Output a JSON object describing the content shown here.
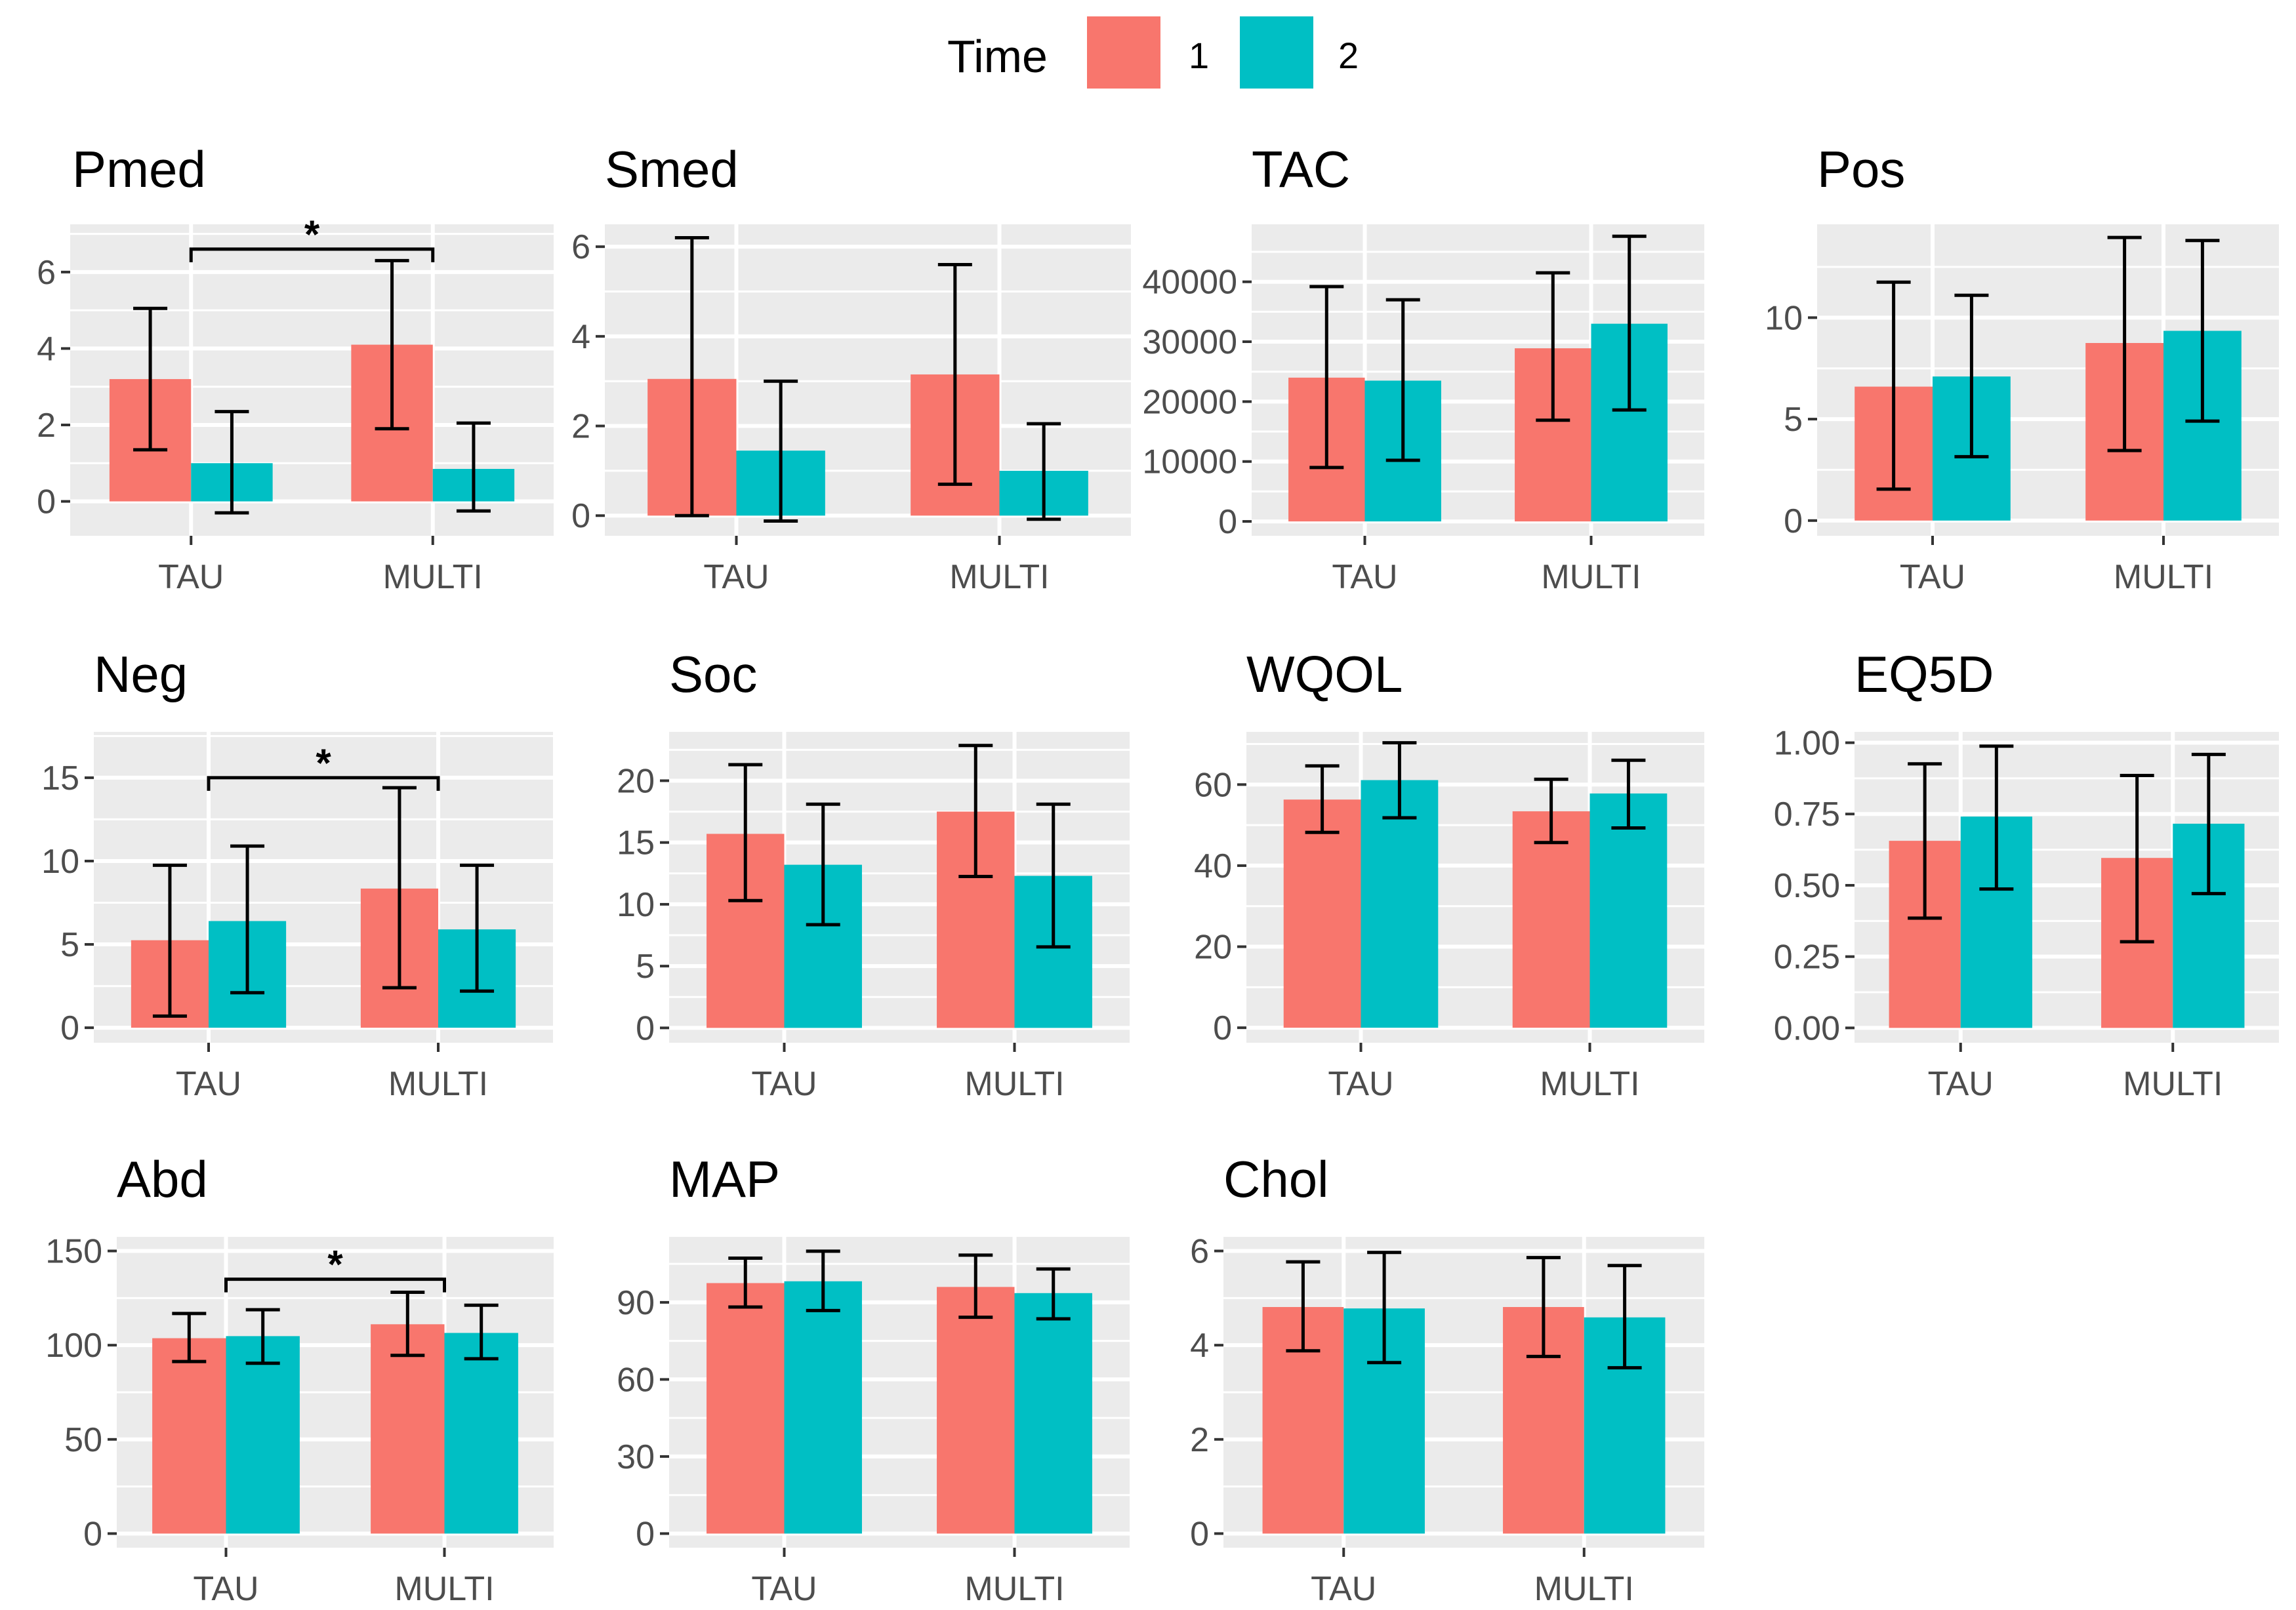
{
  "chart_data": {
    "type": "bar",
    "layout": "facet-grid-3x4",
    "legend": {
      "title": "Time",
      "position": "top-center",
      "entries": [
        {
          "label": "1",
          "color": "#F8766D"
        },
        {
          "label": "2",
          "color": "#00BFC4"
        }
      ]
    },
    "categories": [
      "TAU",
      "MULTI"
    ],
    "panel_background": "#EBEBEB",
    "grid": true,
    "panels": [
      {
        "title": "Pmed",
        "ylim": [
          -0.9,
          7.25
        ],
        "yticks": [
          0,
          2,
          4,
          6
        ],
        "ytick_labels": [
          "0",
          "2",
          "4",
          "6"
        ],
        "series": [
          {
            "name": "1",
            "values": [
              3.2,
              4.1
            ],
            "err_low": [
              1.35,
              1.9
            ],
            "err_high": [
              5.05,
              6.3
            ]
          },
          {
            "name": "2",
            "values": [
              1.0,
              0.85
            ],
            "err_low": [
              -0.3,
              -0.25
            ],
            "err_high": [
              2.35,
              2.05
            ]
          }
        ],
        "significance": {
          "between": [
            "TAU",
            "MULTI"
          ],
          "label": "*",
          "y": 6.6
        }
      },
      {
        "title": "Smed",
        "ylim": [
          -0.45,
          6.5
        ],
        "yticks": [
          0,
          2,
          4,
          6
        ],
        "ytick_labels": [
          "0",
          "2",
          "4",
          "6"
        ],
        "series": [
          {
            "name": "1",
            "values": [
              3.05,
              3.15
            ],
            "err_low": [
              0.0,
              0.7
            ],
            "err_high": [
              6.2,
              5.6
            ]
          },
          {
            "name": "2",
            "values": [
              1.45,
              1.0
            ],
            "err_low": [
              -0.12,
              -0.08
            ],
            "err_high": [
              3.0,
              2.05
            ]
          }
        ]
      },
      {
        "title": "TAC",
        "ylim": [
          -2400,
          49600
        ],
        "yticks": [
          0,
          10000,
          20000,
          30000,
          40000
        ],
        "ytick_labels": [
          "0",
          "10000",
          "20000",
          "30000",
          "40000"
        ],
        "series": [
          {
            "name": "1",
            "values": [
              24000,
              28900
            ],
            "err_low": [
              9000,
              16900
            ],
            "err_high": [
              39200,
              41500
            ]
          },
          {
            "name": "2",
            "values": [
              23500,
              33000
            ],
            "err_low": [
              10200,
              18600
            ],
            "err_high": [
              37000,
              47600
            ]
          }
        ]
      },
      {
        "title": "Pos",
        "ylim": [
          -0.75,
          14.6
        ],
        "yticks": [
          0,
          5,
          10
        ],
        "ytick_labels": [
          "0",
          "5",
          "10"
        ],
        "series": [
          {
            "name": "1",
            "values": [
              6.6,
              8.75
            ],
            "err_low": [
              1.55,
              3.45
            ],
            "err_high": [
              11.75,
              13.95
            ]
          },
          {
            "name": "2",
            "values": [
              7.1,
              9.35
            ],
            "err_low": [
              3.15,
              4.9
            ],
            "err_high": [
              11.1,
              13.8
            ]
          }
        ]
      },
      {
        "title": "Neg",
        "ylim": [
          -0.9,
          17.75
        ],
        "yticks": [
          0,
          5,
          10,
          15
        ],
        "ytick_labels": [
          "0",
          "5",
          "10",
          "15"
        ],
        "series": [
          {
            "name": "1",
            "values": [
              5.25,
              8.35
            ],
            "err_low": [
              0.7,
              2.4
            ],
            "err_high": [
              9.75,
              14.4
            ]
          },
          {
            "name": "2",
            "values": [
              6.4,
              5.9
            ],
            "err_low": [
              2.1,
              2.2
            ],
            "err_high": [
              10.9,
              9.75
            ]
          }
        ],
        "significance": {
          "between": [
            "TAU",
            "MULTI"
          ],
          "label": "*",
          "y": 15.0
        }
      },
      {
        "title": "Soc",
        "ylim": [
          -1.2,
          23.95
        ],
        "yticks": [
          0,
          5,
          10,
          15,
          20
        ],
        "ytick_labels": [
          "0",
          "5",
          "10",
          "15",
          "20"
        ],
        "series": [
          {
            "name": "1",
            "values": [
              15.7,
              17.5
            ],
            "err_low": [
              10.3,
              12.25
            ],
            "err_high": [
              21.3,
              22.85
            ]
          },
          {
            "name": "2",
            "values": [
              13.2,
              12.3
            ],
            "err_low": [
              8.35,
              6.55
            ],
            "err_high": [
              18.1,
              18.1
            ]
          }
        ]
      },
      {
        "title": "WQOL",
        "ylim": [
          -3.7,
          73.0
        ],
        "yticks": [
          0,
          20,
          40,
          60
        ],
        "ytick_labels": [
          "0",
          "20",
          "40",
          "60"
        ],
        "series": [
          {
            "name": "1",
            "values": [
              56.3,
              53.4
            ],
            "err_low": [
              48.2,
              45.7
            ],
            "err_high": [
              64.6,
              61.3
            ]
          },
          {
            "name": "2",
            "values": [
              61.1,
              57.8
            ],
            "err_low": [
              51.8,
              49.3
            ],
            "err_high": [
              70.3,
              66.0
            ]
          }
        ]
      },
      {
        "title": "EQ5D",
        "ylim": [
          -0.052,
          1.038
        ],
        "yticks": [
          0,
          0.25,
          0.5,
          0.75,
          1.0
        ],
        "ytick_labels": [
          "0.00",
          "0.25",
          "0.50",
          "0.75",
          "1.00"
        ],
        "series": [
          {
            "name": "1",
            "values": [
              0.656,
              0.596
            ],
            "err_low": [
              0.385,
              0.302
            ],
            "err_high": [
              0.926,
              0.885
            ]
          },
          {
            "name": "2",
            "values": [
              0.741,
              0.716
            ],
            "err_low": [
              0.487,
              0.471
            ],
            "err_high": [
              0.988,
              0.959
            ]
          }
        ]
      },
      {
        "title": "Abd",
        "ylim": [
          -7.5,
          157.5
        ],
        "yticks": [
          0,
          50,
          100,
          150
        ],
        "ytick_labels": [
          "0",
          "50",
          "100",
          "150"
        ],
        "series": [
          {
            "name": "1",
            "values": [
              103.7,
              111.1
            ],
            "err_low": [
              91.3,
              94.6
            ],
            "err_high": [
              116.8,
              128.1
            ]
          },
          {
            "name": "2",
            "values": [
              104.8,
              106.5
            ],
            "err_low": [
              90.4,
              92.8
            ],
            "err_high": [
              118.8,
              121.2
            ]
          }
        ],
        "significance": {
          "between": [
            "TAU",
            "MULTI"
          ],
          "label": "*",
          "y": 135.0
        }
      },
      {
        "title": "MAP",
        "ylim": [
          -5.5,
          115.5
        ],
        "yticks": [
          0,
          30,
          60,
          90
        ],
        "ytick_labels": [
          "0",
          "30",
          "60",
          "90"
        ],
        "series": [
          {
            "name": "1",
            "values": [
              97.5,
              96.0
            ],
            "err_low": [
              88.2,
              84.2
            ],
            "err_high": [
              107.2,
              108.4
            ]
          },
          {
            "name": "2",
            "values": [
              98.2,
              93.6
            ],
            "err_low": [
              86.8,
              83.6
            ],
            "err_high": [
              109.9,
              103.0
            ]
          }
        ]
      },
      {
        "title": "Chol",
        "ylim": [
          -0.3,
          6.3
        ],
        "yticks": [
          0,
          2,
          4,
          6
        ],
        "ytick_labels": [
          "0",
          "2",
          "4",
          "6"
        ],
        "series": [
          {
            "name": "1",
            "values": [
              4.81,
              4.81
            ],
            "err_low": [
              3.88,
              3.76
            ],
            "err_high": [
              5.77,
              5.86
            ]
          },
          {
            "name": "2",
            "values": [
              4.78,
              4.59
            ],
            "err_low": [
              3.63,
              3.52
            ],
            "err_high": [
              5.97,
              5.69
            ]
          }
        ]
      }
    ]
  }
}
